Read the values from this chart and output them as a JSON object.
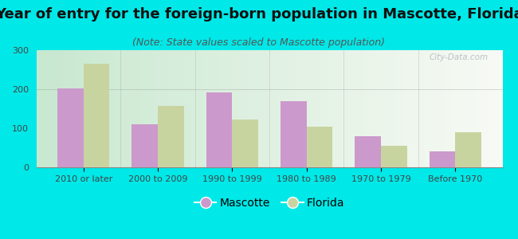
{
  "title": "Year of entry for the foreign-born population in Mascotte, Florida",
  "subtitle": "(Note: State values scaled to Mascotte population)",
  "categories": [
    "2010 or later",
    "2000 to 2009",
    "1990 to 1999",
    "1980 to 1989",
    "1970 to 1979",
    "Before 1970"
  ],
  "mascotte_values": [
    202,
    110,
    192,
    170,
    80,
    40
  ],
  "florida_values": [
    265,
    158,
    122,
    104,
    55,
    90
  ],
  "mascotte_color": "#cc99cc",
  "florida_color": "#c8d4a0",
  "background_outer": "#00e8e8",
  "background_inner_left": "#c8e8d0",
  "background_inner_right": "#f8faf5",
  "ylim": [
    0,
    300
  ],
  "yticks": [
    0,
    100,
    200,
    300
  ],
  "bar_width": 0.35,
  "title_fontsize": 13,
  "subtitle_fontsize": 9,
  "legend_fontsize": 10,
  "tick_fontsize": 8,
  "title_color": "#111111",
  "subtitle_color": "#555555",
  "tick_color": "#444444"
}
